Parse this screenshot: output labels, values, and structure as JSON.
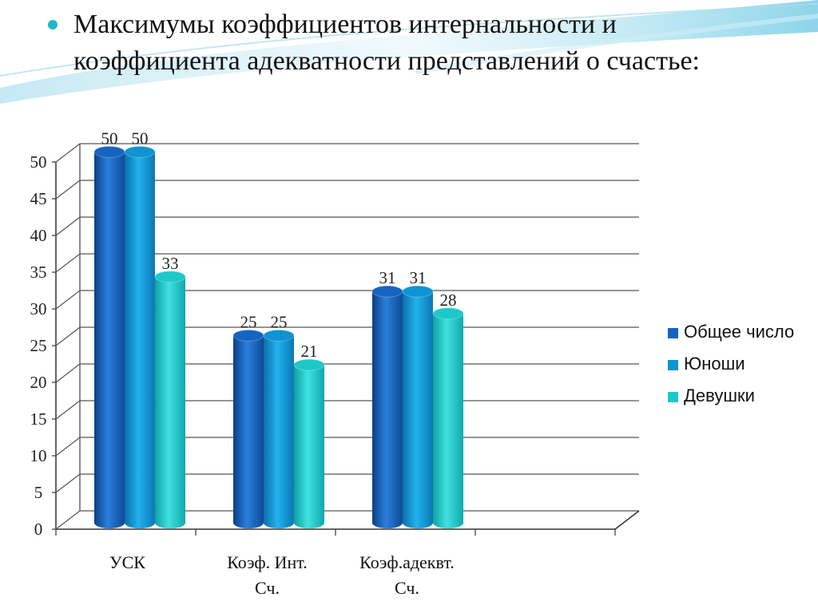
{
  "slide": {
    "title": "Максимумы коэффициентов интернальности и коэффициента адекватности представлений о счастье:"
  },
  "chart_data": {
    "type": "bar",
    "title": "Максимумы коэффициентов интернальности и коэффициента адекватности представлений о счастье:",
    "categories": [
      "УСК",
      "Коэф. Инт. Сч.",
      "Коэф.адеквт. Сч."
    ],
    "category_lines": [
      [
        "УСК"
      ],
      [
        "Коэф. Инт.",
        "Сч."
      ],
      [
        "Коэф.адеквт.",
        "Сч."
      ]
    ],
    "series": [
      {
        "name": "Общее число",
        "values": [
          50,
          25,
          31
        ],
        "color": "#1565c0"
      },
      {
        "name": "Юноши",
        "values": [
          50,
          25,
          31
        ],
        "color": "#0f93d2"
      },
      {
        "name": "Девушки",
        "values": [
          33,
          21,
          28
        ],
        "color": "#1ec8c8"
      }
    ],
    "ylim": [
      0,
      50
    ],
    "yticks": [
      0,
      5,
      10,
      15,
      20,
      25,
      30,
      35,
      40,
      45,
      50
    ],
    "xlabel": "",
    "ylabel": "",
    "grid": true,
    "legend": "right",
    "data_labels": true
  }
}
